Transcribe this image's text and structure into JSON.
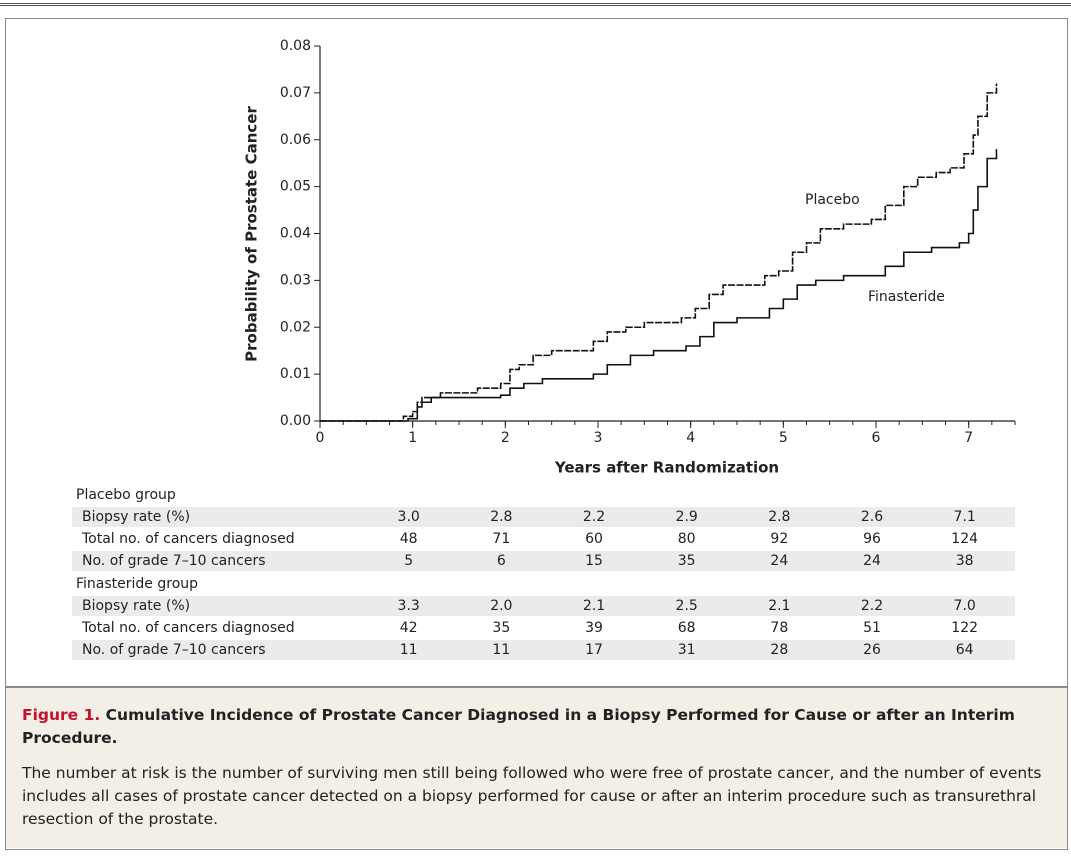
{
  "chart_data": {
    "type": "line",
    "y_label": "Probability of Prostate Cancer",
    "x_label": "Years after Randomization",
    "xlim": [
      0,
      7.5
    ],
    "xticks": [
      0,
      1,
      2,
      3,
      4,
      5,
      6,
      7
    ],
    "ylim": [
      0,
      0.08
    ],
    "yticks": [
      {
        "value": 0,
        "label": "0.00"
      },
      {
        "value": 0.01,
        "label": "0.01"
      },
      {
        "value": 0.02,
        "label": "0.02"
      },
      {
        "value": 0.03,
        "label": "0.03"
      },
      {
        "value": 0.04,
        "label": "0.04"
      },
      {
        "value": 0.05,
        "label": "0.05"
      },
      {
        "value": 0.06,
        "label": "0.06"
      },
      {
        "value": 0.07,
        "label": "0.07"
      },
      {
        "value": 0.08,
        "label": "0.08"
      }
    ],
    "series": [
      {
        "name": "Placebo",
        "color": "#111111",
        "x": [
          0,
          0.7,
          0.9,
          1.0,
          1.05,
          1.1,
          1.2,
          1.3,
          1.6,
          1.7,
          1.95,
          2.05,
          2.15,
          2.3,
          2.5,
          2.8,
          2.95,
          3.1,
          3.3,
          3.5,
          3.9,
          4.05,
          4.2,
          4.35,
          4.8,
          4.95,
          5.1,
          5.25,
          5.4,
          5.65,
          5.95,
          6.1,
          6.3,
          6.45,
          6.65,
          6.8,
          6.95,
          7.05,
          7.1,
          7.2,
          7.3
        ],
        "values": [
          0,
          0,
          0.001,
          0.002,
          0.004,
          0.005,
          0.005,
          0.006,
          0.006,
          0.007,
          0.008,
          0.011,
          0.012,
          0.014,
          0.015,
          0.015,
          0.017,
          0.019,
          0.02,
          0.021,
          0.022,
          0.024,
          0.027,
          0.029,
          0.031,
          0.032,
          0.036,
          0.038,
          0.041,
          0.042,
          0.043,
          0.046,
          0.05,
          0.052,
          0.053,
          0.054,
          0.057,
          0.061,
          0.065,
          0.07,
          0.072
        ]
      },
      {
        "name": "Finasteride",
        "color": "#111111",
        "x": [
          0,
          0.7,
          0.95,
          1.05,
          1.1,
          1.2,
          1.5,
          1.95,
          2.05,
          2.2,
          2.4,
          2.8,
          2.95,
          3.1,
          3.35,
          3.6,
          3.95,
          4.1,
          4.25,
          4.5,
          4.85,
          5.0,
          5.15,
          5.35,
          5.65,
          5.95,
          6.1,
          6.3,
          6.6,
          6.9,
          7.0,
          7.05,
          7.1,
          7.2,
          7.3
        ],
        "values": [
          0,
          0,
          0.0005,
          0.003,
          0.004,
          0.005,
          0.005,
          0.0055,
          0.007,
          0.008,
          0.009,
          0.009,
          0.01,
          0.012,
          0.014,
          0.015,
          0.016,
          0.018,
          0.021,
          0.022,
          0.024,
          0.026,
          0.029,
          0.03,
          0.031,
          0.031,
          0.033,
          0.036,
          0.037,
          0.038,
          0.04,
          0.045,
          0.05,
          0.056,
          0.058
        ]
      }
    ]
  },
  "table": {
    "groups": [
      {
        "name": "Placebo group",
        "rows": [
          {
            "label": "Biopsy rate (%)",
            "values": [
              "3.0",
              "2.8",
              "2.2",
              "2.9",
              "2.8",
              "2.6",
              "7.1"
            ]
          },
          {
            "label": "Total no. of cancers diagnosed",
            "values": [
              "48",
              "71",
              "60",
              "80",
              "92",
              "96",
              "124"
            ]
          },
          {
            "label": "No. of grade 7–10 cancers",
            "values": [
              "5",
              "6",
              "15",
              "35",
              "24",
              "24",
              "38"
            ]
          }
        ]
      },
      {
        "name": "Finasteride group",
        "rows": [
          {
            "label": "Biopsy rate (%)",
            "values": [
              "3.3",
              "2.0",
              "2.1",
              "2.5",
              "2.1",
              "2.2",
              "7.0"
            ]
          },
          {
            "label": "Total no. of cancers diagnosed",
            "values": [
              "42",
              "35",
              "39",
              "68",
              "78",
              "51",
              "122"
            ]
          },
          {
            "label": "No. of grade 7–10 cancers",
            "values": [
              "11",
              "11",
              "17",
              "31",
              "28",
              "26",
              "64"
            ]
          }
        ]
      }
    ]
  },
  "caption": {
    "figure_label": "Figure 1.",
    "title": "Cumulative Incidence of Prostate Cancer Diagnosed in a Biopsy Performed for Cause or after an Interim Procedure.",
    "body": "The number at risk is the number of surviving men still being followed who were free of prostate cancer, and the number of events includes all cases of prostate cancer detected on a biopsy performed for cause or after an interim procedure such as transurethral resection of the prostate."
  }
}
